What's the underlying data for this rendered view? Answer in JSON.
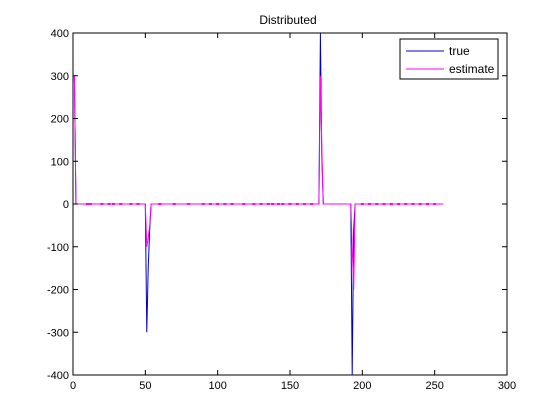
{
  "chart_data": {
    "type": "line",
    "title": "Distributed",
    "xlabel": "",
    "ylabel": "",
    "xlim": [
      0,
      300
    ],
    "ylim": [
      -400,
      400
    ],
    "xticks": [
      0,
      50,
      100,
      150,
      200,
      250,
      300
    ],
    "yticks": [
      -400,
      -300,
      -200,
      -100,
      0,
      100,
      200,
      300,
      400
    ],
    "grid": false,
    "legend_position": "top-right",
    "series": [
      {
        "name": "true",
        "color": "#0000cc",
        "x": [
          1,
          1.5,
          2,
          3,
          50,
          51,
          52,
          53,
          54,
          170,
          171,
          172,
          173,
          192,
          193,
          194,
          195,
          256
        ],
        "y": [
          300,
          150,
          0,
          0,
          0,
          -300,
          -150,
          -60,
          0,
          0,
          400,
          110,
          0,
          0,
          -400,
          -60,
          0,
          0
        ]
      },
      {
        "name": "estimate",
        "color": "#ff00ff",
        "x": [
          1,
          1.5,
          2,
          3,
          50,
          51,
          52,
          53,
          54,
          170,
          171,
          172,
          173,
          192,
          193,
          194,
          195,
          256
        ],
        "y": [
          300,
          150,
          0,
          0,
          0,
          -100,
          -80,
          -50,
          0,
          0,
          300,
          130,
          0,
          0,
          -100,
          -200,
          0,
          0
        ]
      }
    ],
    "markers_x": [
      10,
      12,
      20,
      25,
      28,
      33,
      40,
      45,
      60,
      70,
      80,
      90,
      95,
      100,
      105,
      110,
      118,
      125,
      130,
      135,
      138,
      142,
      145,
      150,
      155,
      160,
      165,
      200,
      205,
      210,
      215,
      220,
      225,
      230,
      235,
      240,
      245,
      250
    ]
  }
}
